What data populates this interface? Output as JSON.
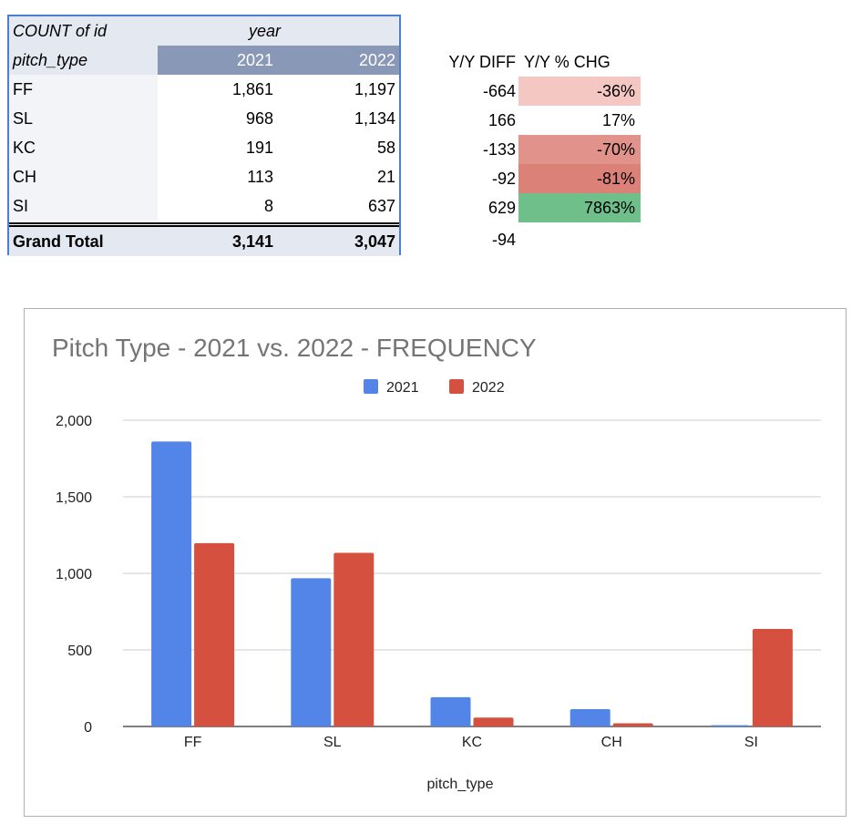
{
  "table": {
    "corner_label": "COUNT of id",
    "year_label": "year",
    "row_header": "pitch_type",
    "years": [
      "2021",
      "2022"
    ],
    "rows": [
      {
        "type": "FF",
        "v2021": "1,861",
        "v2022": "1,197",
        "diff": "-664",
        "pct": "-36%",
        "pct_color": "#f4c7c3"
      },
      {
        "type": "SL",
        "v2021": "968",
        "v2022": "1,134",
        "diff": "166",
        "pct": "17%",
        "pct_color": "#ffffff"
      },
      {
        "type": "KC",
        "v2021": "191",
        "v2022": "58",
        "diff": "-133",
        "pct": "-70%",
        "pct_color": "#e0928b"
      },
      {
        "type": "CH",
        "v2021": "113",
        "v2022": "21",
        "diff": "-92",
        "pct": "-81%",
        "pct_color": "#dc8177"
      },
      {
        "type": "SI",
        "v2021": "8",
        "v2022": "637",
        "diff": "629",
        "pct": "7863%",
        "pct_color": "#6fbf8b"
      }
    ],
    "grand_total": {
      "label": "Grand Total",
      "v2021": "3,141",
      "v2022": "3,047",
      "diff": "-94"
    },
    "diff_header": "Y/Y DIFF",
    "pct_header": "Y/Y % CHG"
  },
  "chart_data": {
    "type": "bar",
    "title": "Pitch Type - 2021 vs. 2022 - FREQUENCY",
    "xlabel": "pitch_type",
    "ylabel": "",
    "categories": [
      "FF",
      "SL",
      "KC",
      "CH",
      "SI"
    ],
    "series": [
      {
        "name": "2021",
        "color": "#5384e8",
        "values": [
          1861,
          968,
          191,
          113,
          8
        ]
      },
      {
        "name": "2022",
        "color": "#d6503f",
        "values": [
          1197,
          1134,
          58,
          21,
          637
        ]
      }
    ],
    "ylim": [
      0,
      2000
    ],
    "yticks": [
      0,
      500,
      1000,
      1500,
      2000
    ],
    "ytick_labels": [
      "0",
      "500",
      "1,000",
      "1,500",
      "2,000"
    ],
    "legend_position": "top",
    "grid": true
  }
}
